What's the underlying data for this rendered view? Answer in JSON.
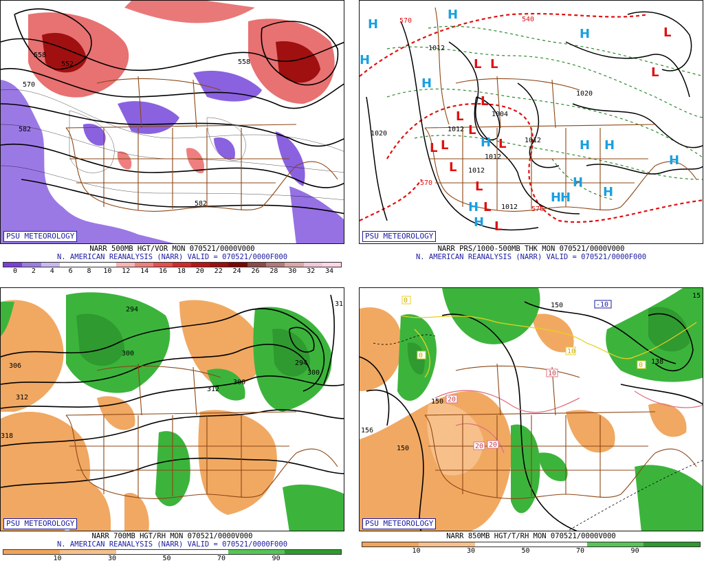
{
  "panels": [
    {
      "brand": "PSU METEOROLOGY",
      "caption_line1": "NARR 500MB HGT/VOR MON 070521/0000V000",
      "caption_line2": "N. AMERICAN REANALYSIS (NARR) VALID = 070521/0000F000",
      "colorbar_colors": [
        "#7a3fd6",
        "#9b7de0",
        "#c9b8f0",
        "#ffffff",
        "#ffffff",
        "#ffffff",
        "#f7b5b5",
        "#ef7f7f",
        "#e44f4f",
        "#d22a2a",
        "#b81616",
        "#9a0e0e",
        "#7a0606",
        "#8c4a4a",
        "#b07a7a",
        "#d8a8a8",
        "#f0c8d8",
        "#ffd6e6"
      ],
      "colorbar_ticks": [
        "0",
        "2",
        "4",
        "6",
        "8",
        "10",
        "12",
        "14",
        "16",
        "18",
        "20",
        "22",
        "24",
        "26",
        "28",
        "30",
        "32",
        "34"
      ],
      "contour_labels": [
        "558",
        "552",
        "570",
        "558",
        "582",
        "582"
      ]
    },
    {
      "brand": "PSU METEOROLOGY",
      "caption_line1": "NARR PRS/1000-500MB THK MON 070521/0000V000",
      "caption_line2": "N. AMERICAN REANALYSIS (NARR) VALID = 070521/0000F000",
      "contour_labels": [
        "570",
        "540",
        "1020",
        "1012",
        "1004",
        "1012",
        "1020",
        "1012",
        "1012",
        "1012",
        "570",
        "570",
        "1012"
      ],
      "high_symbol": "H",
      "low_symbol": "L"
    },
    {
      "brand": "PSU METEOROLOGY",
      "caption_line1": "NARR 700MB HGT/RH MON 070521/0000V000",
      "caption_line2": "N. AMERICAN REANALYSIS (NARR) VALID = 070521/0000F000",
      "colorbar_colors": [
        "#f0a45a",
        "#f7c08a",
        "#ffffff",
        "#ffffff",
        "#56c456",
        "#2f9a2f"
      ],
      "colorbar_ticks": [
        "10",
        "30",
        "50",
        "70",
        "90"
      ],
      "contour_labels": [
        "294",
        "300",
        "306",
        "312",
        "318",
        "294",
        "300",
        "306",
        "312",
        "31"
      ]
    },
    {
      "brand": "PSU METEOROLOGY",
      "caption_line1": "NARR 850MB HGT/T/RH MON 070521/0000V000",
      "caption_line2": "",
      "colorbar_colors": [
        "#f0a45a",
        "#f7c08a",
        "#ffffff",
        "#ffffff",
        "#56c456",
        "#2f9a2f"
      ],
      "colorbar_ticks": [
        "10",
        "30",
        "50",
        "70",
        "90"
      ],
      "contour_labels": [
        "150",
        "156",
        "150",
        "138",
        "15",
        "150"
      ],
      "temp_labels": [
        "0",
        "0",
        "10",
        "0",
        "20",
        "20",
        "20",
        "10",
        "-10"
      ]
    }
  ],
  "colors": {
    "state_lines": "#8b4513",
    "height_contours": "#000000",
    "high_blue": "#1aa0e0",
    "low_red": "#e01010",
    "thickness_red": "#e01010",
    "thickness_green": "#2a8a2a",
    "rh_green": "#3cb43c",
    "rh_orange": "#f0a45a",
    "temp_yellow": "#e8d020",
    "temp_pink": "#e07080"
  }
}
